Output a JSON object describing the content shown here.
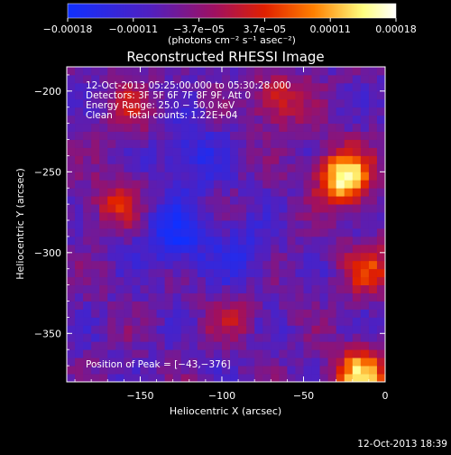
{
  "chart_data": {
    "type": "heatmap",
    "title": "Reconstructed RHESSI Image",
    "xlabel": "Heliocentric X (arcsec)",
    "ylabel": "Heliocentric Y (arcsec)",
    "xlim": [
      -195,
      0
    ],
    "ylim": [
      -380,
      -185
    ],
    "x_ticks": [
      -150,
      -100,
      -50,
      0
    ],
    "x_tick_labels": [
      "−150",
      "−100",
      "−50",
      "0"
    ],
    "y_ticks": [
      -200,
      -250,
      -300,
      -350
    ],
    "y_tick_labels": [
      "−200",
      "−250",
      "−300",
      "−350"
    ],
    "colorbar": {
      "range": [
        -0.00018,
        0.00018
      ],
      "tick_labels": [
        "−0.00018",
        "−0.00011",
        "−3.7e−05",
        "3.7e−05",
        "0.00011",
        "0.00018"
      ],
      "unit_label": "(photons cm⁻² s⁻¹ asec⁻²)",
      "colors": [
        "#1030ff",
        "#5020c0",
        "#a01060",
        "#e02000",
        "#ff8000",
        "#ffff80",
        "#ffffff"
      ]
    },
    "annotations": [
      "12-Oct-2013 05:25:00.000 to 05:30:28.000",
      "Detectors: 3F 5F 6F 7F 8F 9F, Att 0",
      "Energy Range: 25.0 − 50.0 keV",
      "Clean     Total counts: 1.22E+04"
    ],
    "peak_label": "Position of Peak = [−43,−376]",
    "peak_position": [
      -43,
      -376
    ],
    "bright_sources": [
      {
        "x": -25,
        "y": -253,
        "level": 0.95
      },
      {
        "x": -15,
        "y": -375,
        "level": 0.85
      },
      {
        "x": -165,
        "y": -270,
        "level": 0.55
      },
      {
        "x": -155,
        "y": -210,
        "level": 0.5
      },
      {
        "x": -65,
        "y": -205,
        "level": 0.6
      },
      {
        "x": -10,
        "y": -310,
        "level": 0.6
      },
      {
        "x": -95,
        "y": -340,
        "level": 0.45
      }
    ],
    "dark_regions": [
      {
        "x": -130,
        "y": -290,
        "level": 0.2
      },
      {
        "x": -120,
        "y": -240,
        "level": 0.25
      },
      {
        "x": -90,
        "y": -300,
        "level": 0.3
      }
    ]
  },
  "footer": {
    "timestamp": "12-Oct-2013 18:39"
  }
}
